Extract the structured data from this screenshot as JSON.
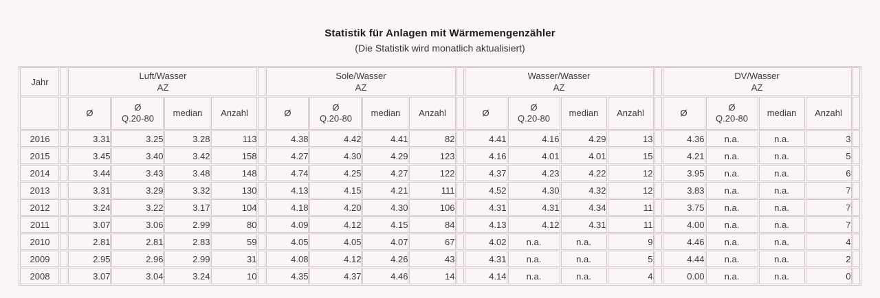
{
  "page": {
    "title": "Statistik für Anlagen mit Wärmemengenzähler",
    "subtitle": "(Die Statistik wird monatlich aktualisiert)"
  },
  "table": {
    "year_header": "Jahr",
    "groups": [
      {
        "name": "Luft/Wasser",
        "sub": "AZ"
      },
      {
        "name": "Sole/Wasser",
        "sub": "AZ"
      },
      {
        "name": "Wasser/Wasser",
        "sub": "AZ"
      },
      {
        "name": "DV/Wasser",
        "sub": "AZ"
      }
    ],
    "subcolumns": [
      {
        "line1": "Ø",
        "line2": ""
      },
      {
        "line1": "Ø",
        "line2": "Q.20-80"
      },
      {
        "line1": "median",
        "line2": ""
      },
      {
        "line1": "Anzahl",
        "line2": ""
      }
    ],
    "na_text": "n.a.",
    "rows": [
      {
        "year": "2016",
        "values": [
          "3.31",
          "3.25",
          "3.28",
          "113",
          "4.38",
          "4.42",
          "4.41",
          "82",
          "4.41",
          "4.16",
          "4.29",
          "13",
          "4.36",
          "n.a.",
          "n.a.",
          "3"
        ]
      },
      {
        "year": "2015",
        "values": [
          "3.45",
          "3.40",
          "3.42",
          "158",
          "4.27",
          "4.30",
          "4.29",
          "123",
          "4.16",
          "4.01",
          "4.01",
          "15",
          "4.21",
          "n.a.",
          "n.a.",
          "5"
        ]
      },
      {
        "year": "2014",
        "values": [
          "3.44",
          "3.43",
          "3.48",
          "148",
          "4.74",
          "4.25",
          "4.27",
          "122",
          "4.37",
          "4.23",
          "4.22",
          "12",
          "3.95",
          "n.a.",
          "n.a.",
          "6"
        ]
      },
      {
        "year": "2013",
        "values": [
          "3.31",
          "3.29",
          "3.32",
          "130",
          "4.13",
          "4.15",
          "4.21",
          "111",
          "4.52",
          "4.30",
          "4.32",
          "12",
          "3.83",
          "n.a.",
          "n.a.",
          "7"
        ]
      },
      {
        "year": "2012",
        "values": [
          "3.24",
          "3.22",
          "3.17",
          "104",
          "4.18",
          "4.20",
          "4.30",
          "106",
          "4.31",
          "4.31",
          "4.34",
          "11",
          "3.75",
          "n.a.",
          "n.a.",
          "7"
        ]
      },
      {
        "year": "2011",
        "values": [
          "3.07",
          "3.06",
          "2.99",
          "80",
          "4.09",
          "4.12",
          "4.15",
          "84",
          "4.13",
          "4.12",
          "4.31",
          "11",
          "4.00",
          "n.a.",
          "n.a.",
          "7"
        ]
      },
      {
        "year": "2010",
        "values": [
          "2.81",
          "2.81",
          "2.83",
          "59",
          "4.05",
          "4.05",
          "4.07",
          "67",
          "4.02",
          "n.a.",
          "n.a.",
          "9",
          "4.46",
          "n.a.",
          "n.a.",
          "4"
        ]
      },
      {
        "year": "2009",
        "values": [
          "2.95",
          "2.96",
          "2.99",
          "31",
          "4.08",
          "4.12",
          "4.26",
          "43",
          "4.31",
          "n.a.",
          "n.a.",
          "5",
          "4.44",
          "n.a.",
          "n.a.",
          "2"
        ]
      },
      {
        "year": "2008",
        "values": [
          "3.07",
          "3.04",
          "3.24",
          "10",
          "4.35",
          "4.37",
          "4.46",
          "14",
          "4.14",
          "n.a.",
          "n.a.",
          "4",
          "0.00",
          "n.a.",
          "n.a.",
          "0"
        ]
      }
    ],
    "layout": {
      "year_col_width": 57,
      "spacer_col_width": 11,
      "value_col_widths": [
        62,
        76,
        67,
        67
      ]
    }
  },
  "colors": {
    "background": "#fbf5f6",
    "border": "#cfc7c9",
    "text": "#3c3739"
  }
}
